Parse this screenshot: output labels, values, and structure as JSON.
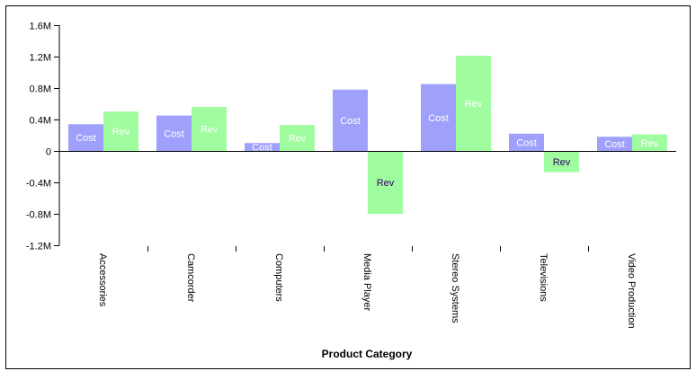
{
  "chart_data": {
    "type": "bar",
    "title": "",
    "xlabel": "Product Category",
    "ylabel": "",
    "ylim": [
      -1200000,
      1600000
    ],
    "y_ticks": [
      {
        "value": -1200000,
        "label": "-1.2M"
      },
      {
        "value": -800000,
        "label": "-0.8M"
      },
      {
        "value": -400000,
        "label": "-0.4M"
      },
      {
        "value": 0,
        "label": "0"
      },
      {
        "value": 400000,
        "label": "0.4M"
      },
      {
        "value": 800000,
        "label": "0.8M"
      },
      {
        "value": 1200000,
        "label": "1.2M"
      },
      {
        "value": 1600000,
        "label": "1.6M"
      }
    ],
    "categories": [
      "Accessories",
      "Camcorder",
      "Computers",
      "Media Player",
      "Stereo Systems",
      "Televisions",
      "Video Production"
    ],
    "series": [
      {
        "name": "Cost",
        "color": "#9f9ffc",
        "label_color": "#ffffff",
        "values": [
          340000,
          450000,
          100000,
          780000,
          850000,
          220000,
          180000
        ]
      },
      {
        "name": "Rev",
        "color": "#9ffc9f",
        "label_color": "#ffffff",
        "values": [
          500000,
          560000,
          330000,
          -800000,
          1210000,
          -270000,
          210000
        ]
      }
    ],
    "negative_label_color": "#330066",
    "grid": false,
    "legend": "none"
  }
}
